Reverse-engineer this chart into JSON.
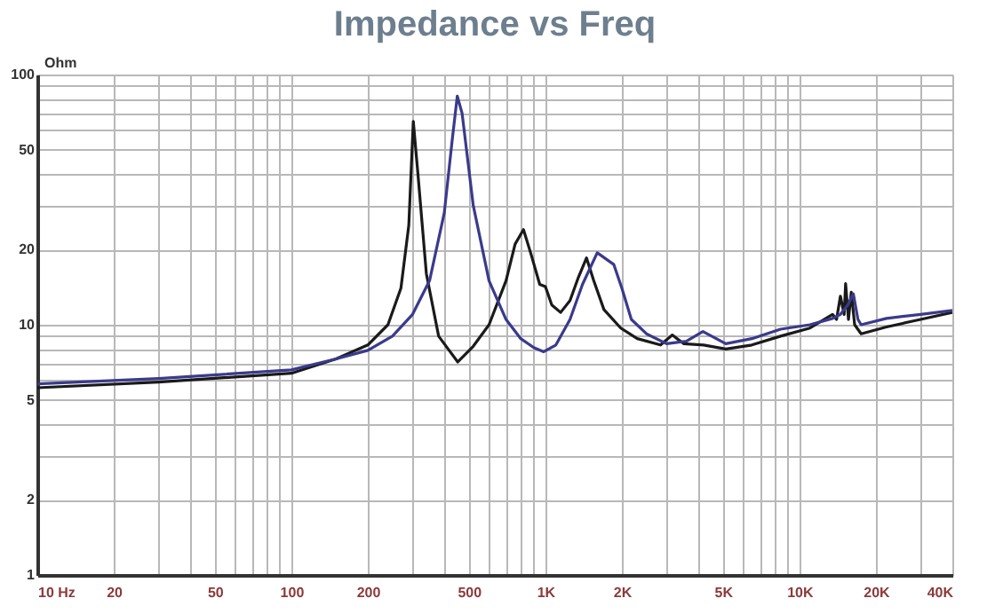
{
  "chart_data": {
    "type": "line",
    "title": "Impedance vs Freq",
    "ylabel": "Ohm",
    "log": "xy",
    "grid": true,
    "line_style": "solid",
    "marker": "none",
    "xlim": [
      10,
      40000
    ],
    "ylim": [
      1,
      100
    ],
    "xticks": [
      {
        "value": 10,
        "label": "10 Hz"
      },
      20,
      {
        "value": 30,
        "label": null
      },
      {
        "value": 40,
        "label": null
      },
      50,
      {
        "value": 60,
        "label": null
      },
      {
        "value": 70,
        "label": null
      },
      {
        "value": 80,
        "label": null
      },
      {
        "value": 90,
        "label": null
      },
      100,
      200,
      {
        "value": 300,
        "label": null
      },
      {
        "value": 400,
        "label": null
      },
      500,
      {
        "value": 600,
        "label": null
      },
      {
        "value": 700,
        "label": null
      },
      {
        "value": 800,
        "label": null
      },
      {
        "value": 900,
        "label": null
      },
      {
        "value": 1000,
        "label": "1K"
      },
      {
        "value": 2000,
        "label": "2K"
      },
      {
        "value": 3000,
        "label": null
      },
      {
        "value": 4000,
        "label": null
      },
      {
        "value": 5000,
        "label": "5K"
      },
      {
        "value": 6000,
        "label": null
      },
      {
        "value": 7000,
        "label": null
      },
      {
        "value": 8000,
        "label": null
      },
      {
        "value": 9000,
        "label": null
      },
      {
        "value": 10000,
        "label": "10K"
      },
      {
        "value": 20000,
        "label": "20K"
      },
      {
        "value": 30000,
        "label": null
      },
      {
        "value": 40000,
        "label": "40K"
      }
    ],
    "yticks": [
      1,
      2,
      {
        "value": 3,
        "label": null
      },
      {
        "value": 4,
        "label": null
      },
      5,
      {
        "value": 6,
        "label": null
      },
      {
        "value": 7,
        "label": null
      },
      {
        "value": 8,
        "label": null
      },
      {
        "value": 9,
        "label": null
      },
      10,
      20,
      {
        "value": 30,
        "label": null
      },
      {
        "value": 40,
        "label": null
      },
      50,
      {
        "value": 60,
        "label": null
      },
      {
        "value": 70,
        "label": null
      },
      {
        "value": 80,
        "label": null
      },
      {
        "value": 90,
        "label": null
      },
      100
    ],
    "series": [
      {
        "color": "#1a1a1a",
        "x": [
          10,
          30,
          100,
          150,
          200,
          240,
          270,
          290,
          302,
          315,
          340,
          380,
          452,
          520,
          600,
          700,
          760,
          820,
          880,
          950,
          1000,
          1060,
          1148,
          1250,
          1350,
          1452,
          1550,
          1700,
          1980,
          2300,
          2840,
          3160,
          3500,
          4200,
          5130,
          6500,
          8430,
          11000,
          12500,
          13500,
          14000,
          14500,
          15000,
          15200,
          15600,
          16000,
          16500,
          17500,
          22000,
          30000,
          40000
        ],
        "values": [
          5.6,
          5.9,
          6.4,
          7.3,
          8.3,
          10,
          14,
          25,
          65,
          40,
          16,
          9,
          7.1,
          8.2,
          10,
          15,
          21,
          24,
          19,
          14.5,
          14.2,
          12,
          11.2,
          12.5,
          15.5,
          18.5,
          15,
          11.5,
          9.7,
          8.8,
          8.3,
          9.1,
          8.4,
          8.3,
          8.0,
          8.3,
          9.0,
          9.7,
          10.5,
          11,
          10.5,
          13,
          11,
          14.6,
          10.5,
          13.5,
          10,
          9.2,
          9.8,
          10.5,
          11.2
        ]
      },
      {
        "color": "#3a3a8c",
        "x": [
          10,
          30,
          100,
          150,
          200,
          250,
          300,
          350,
          400,
          430,
          450,
          470,
          520,
          600,
          700,
          800,
          900,
          985,
          1100,
          1250,
          1400,
          1600,
          1860,
          2000,
          2180,
          2500,
          3000,
          3600,
          4170,
          5130,
          6500,
          8430,
          11000,
          13500,
          14500,
          15500,
          16300,
          17000,
          17500,
          22000,
          30000,
          40000
        ],
        "values": [
          5.8,
          6.1,
          6.6,
          7.3,
          7.9,
          9,
          11,
          15,
          28,
          55,
          82,
          70,
          30,
          15,
          10.5,
          8.8,
          8.1,
          7.8,
          8.3,
          10.5,
          14.5,
          19.4,
          17.4,
          14,
          10.5,
          9.2,
          8.4,
          8.6,
          9.4,
          8.4,
          8.8,
          9.6,
          10,
          10.6,
          11,
          12,
          13.3,
          10.5,
          10,
          10.6,
          11,
          11.4
        ]
      }
    ]
  }
}
